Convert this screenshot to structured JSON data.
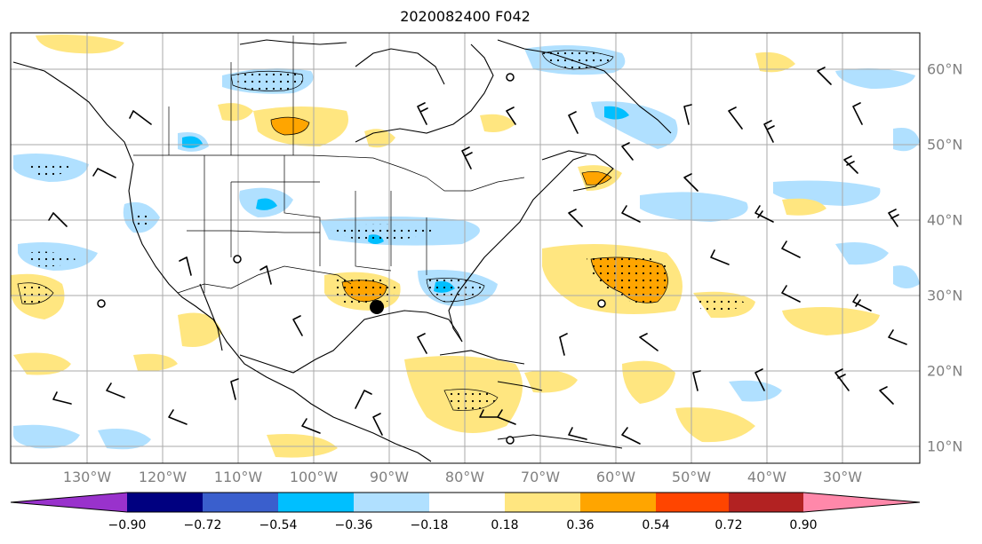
{
  "title": "2020082400 F042",
  "lon_labels": [
    "130°W",
    "120°W",
    "110°W",
    "100°W",
    "90°W",
    "80°W",
    "70°W",
    "60°W",
    "50°W",
    "40°W",
    "30°W"
  ],
  "lat_labels": [
    "60°N",
    "50°N",
    "40°N",
    "30°N",
    "20°N",
    "10°N"
  ],
  "colorbar": {
    "labels": [
      "−0.90",
      "−0.72",
      "−0.54",
      "−0.36",
      "−0.18",
      "0.18",
      "0.36",
      "0.54",
      "0.72",
      "0.90"
    ],
    "colors": [
      "#9932CC",
      "#000080",
      "#3A5FCD",
      "#00BFFF",
      "#B0E0FF",
      "#FFFFFF",
      "#FFE680",
      "#FFA500",
      "#FF4500",
      "#B22222",
      "#FF88AA"
    ]
  },
  "legend_colors": {
    "neg_light": "#B0E0FF",
    "neg_mid": "#00BFFF",
    "pos_light": "#FFE680",
    "pos_mid": "#FFA500"
  }
}
